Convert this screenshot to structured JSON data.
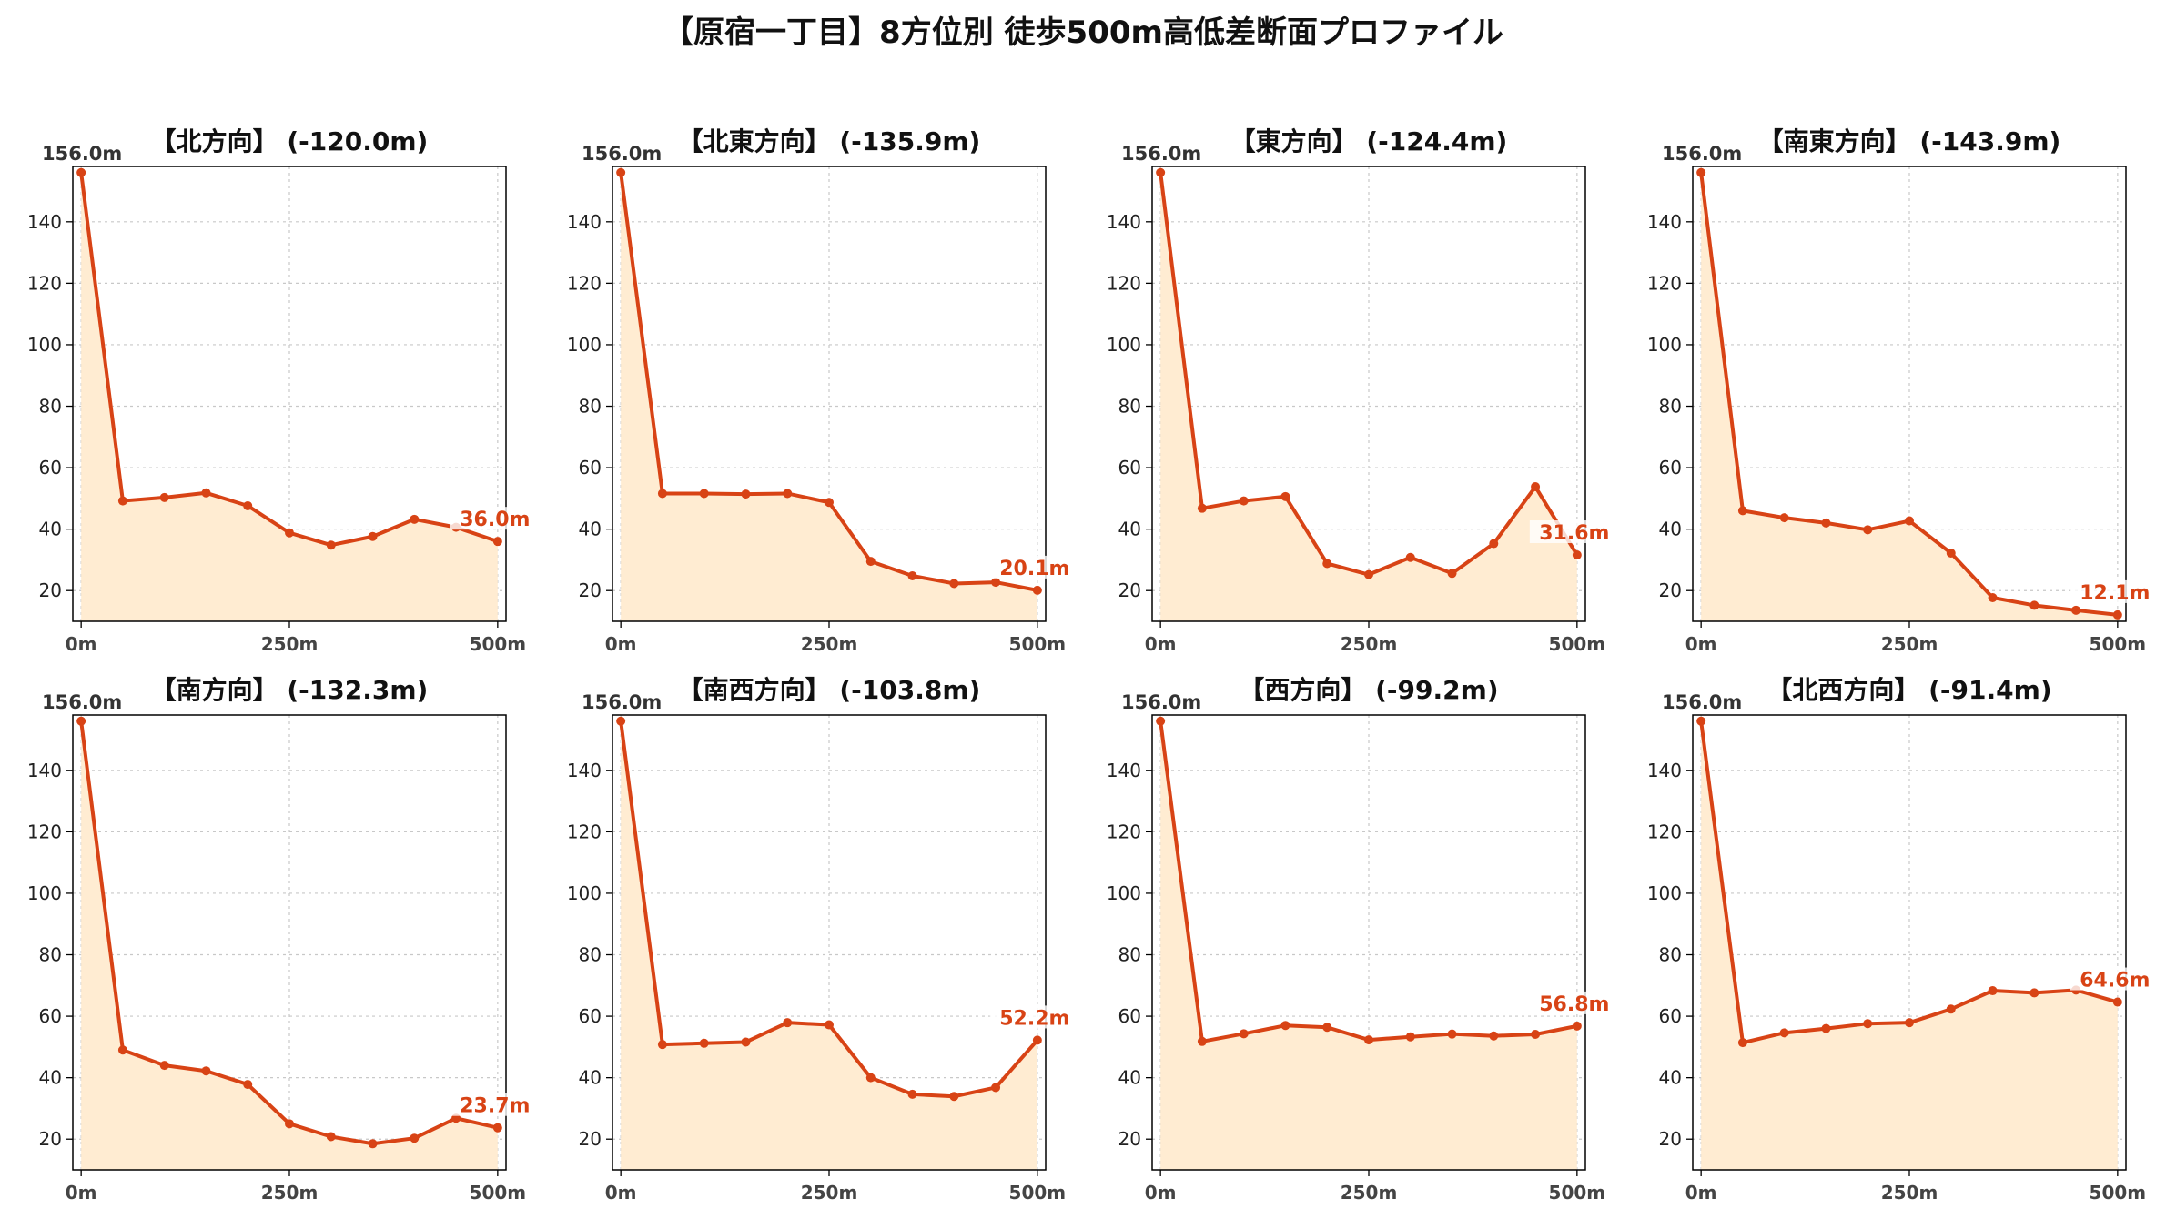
{
  "title": "【原宿一丁目】8方位別 徒歩500m高低差断面プロファイル",
  "colors": {
    "line": "#d84315",
    "fill": "#ffecd2",
    "grid": "#c8c8c8",
    "text": "#222222",
    "tick": "#444444"
  },
  "chart_data": [
    {
      "type": "area",
      "title": "【北方向】 (-120.0m)",
      "start_label": "156.0m",
      "end_label": "36.0m",
      "x": [
        0,
        50,
        100,
        150,
        200,
        250,
        300,
        350,
        400,
        450,
        500
      ],
      "values": [
        156.0,
        49.2,
        50.3,
        51.8,
        47.6,
        38.8,
        34.8,
        37.6,
        43.2,
        40.6,
        36.0
      ],
      "xticks": [
        0,
        250,
        500
      ],
      "xtick_labels": [
        "0m",
        "250m",
        "500m"
      ],
      "xlim": [
        -10,
        510
      ],
      "yticks": [
        20,
        40,
        60,
        80,
        100,
        120,
        140
      ],
      "ylim": [
        10,
        158
      ],
      "grid": true
    },
    {
      "type": "area",
      "title": "【北東方向】 (-135.9m)",
      "start_label": "156.0m",
      "end_label": "20.1m",
      "x": [
        0,
        50,
        100,
        150,
        200,
        250,
        300,
        350,
        400,
        450,
        500
      ],
      "values": [
        156.0,
        51.6,
        51.6,
        51.4,
        51.6,
        48.7,
        29.5,
        24.8,
        22.3,
        22.7,
        20.1
      ],
      "xticks": [
        0,
        250,
        500
      ],
      "xtick_labels": [
        "0m",
        "250m",
        "500m"
      ],
      "xlim": [
        -10,
        510
      ],
      "yticks": [
        20,
        40,
        60,
        80,
        100,
        120,
        140
      ],
      "ylim": [
        10,
        158
      ],
      "grid": true
    },
    {
      "type": "area",
      "title": "【東方向】 (-124.4m)",
      "start_label": "156.0m",
      "end_label": "31.6m",
      "x": [
        0,
        50,
        100,
        150,
        200,
        250,
        300,
        350,
        400,
        450,
        500
      ],
      "values": [
        156.0,
        46.8,
        49.2,
        50.6,
        28.8,
        25.2,
        30.8,
        25.6,
        35.3,
        53.8,
        31.6
      ],
      "xticks": [
        0,
        250,
        500
      ],
      "xtick_labels": [
        "0m",
        "250m",
        "500m"
      ],
      "xlim": [
        -10,
        510
      ],
      "yticks": [
        20,
        40,
        60,
        80,
        100,
        120,
        140
      ],
      "ylim": [
        10,
        158
      ],
      "grid": true
    },
    {
      "type": "area",
      "title": "【南東方向】 (-143.9m)",
      "start_label": "156.0m",
      "end_label": "12.1m",
      "x": [
        0,
        50,
        100,
        150,
        200,
        250,
        300,
        350,
        400,
        450,
        500
      ],
      "values": [
        156.0,
        46.0,
        43.7,
        42.0,
        39.8,
        42.7,
        32.2,
        17.7,
        15.2,
        13.6,
        12.1
      ],
      "xticks": [
        0,
        250,
        500
      ],
      "xtick_labels": [
        "0m",
        "250m",
        "500m"
      ],
      "xlim": [
        -10,
        510
      ],
      "yticks": [
        20,
        40,
        60,
        80,
        100,
        120,
        140
      ],
      "ylim": [
        10,
        158
      ],
      "grid": true
    },
    {
      "type": "area",
      "title": "【南方向】 (-132.3m)",
      "start_label": "156.0m",
      "end_label": "23.7m",
      "x": [
        0,
        50,
        100,
        150,
        200,
        250,
        300,
        350,
        400,
        450,
        500
      ],
      "values": [
        156.0,
        49.0,
        44.0,
        42.2,
        37.8,
        25.0,
        20.8,
        18.5,
        20.3,
        26.8,
        23.7
      ],
      "xticks": [
        0,
        250,
        500
      ],
      "xtick_labels": [
        "0m",
        "250m",
        "500m"
      ],
      "xlim": [
        -10,
        510
      ],
      "yticks": [
        20,
        40,
        60,
        80,
        100,
        120,
        140
      ],
      "ylim": [
        10,
        158
      ],
      "grid": true
    },
    {
      "type": "area",
      "title": "【南西方向】 (-103.8m)",
      "start_label": "156.0m",
      "end_label": "52.2m",
      "x": [
        0,
        50,
        100,
        150,
        200,
        250,
        300,
        350,
        400,
        450,
        500
      ],
      "values": [
        156.0,
        50.8,
        51.2,
        51.6,
        57.9,
        57.2,
        40.0,
        34.6,
        33.9,
        36.8,
        52.2
      ],
      "xticks": [
        0,
        250,
        500
      ],
      "xtick_labels": [
        "0m",
        "250m",
        "500m"
      ],
      "xlim": [
        -10,
        510
      ],
      "yticks": [
        20,
        40,
        60,
        80,
        100,
        120,
        140
      ],
      "ylim": [
        10,
        158
      ],
      "grid": true
    },
    {
      "type": "area",
      "title": "【西方向】 (-99.2m)",
      "start_label": "156.0m",
      "end_label": "56.8m",
      "x": [
        0,
        50,
        100,
        150,
        200,
        250,
        300,
        350,
        400,
        450,
        500
      ],
      "values": [
        156.0,
        51.8,
        54.3,
        57.0,
        56.4,
        52.3,
        53.3,
        54.2,
        53.6,
        54.1,
        56.8
      ],
      "xticks": [
        0,
        250,
        500
      ],
      "xtick_labels": [
        "0m",
        "250m",
        "500m"
      ],
      "xlim": [
        -10,
        510
      ],
      "yticks": [
        20,
        40,
        60,
        80,
        100,
        120,
        140
      ],
      "ylim": [
        10,
        158
      ],
      "grid": true
    },
    {
      "type": "area",
      "title": "【北西方向】 (-91.4m)",
      "start_label": "156.0m",
      "end_label": "64.6m",
      "x": [
        0,
        50,
        100,
        150,
        200,
        250,
        300,
        350,
        400,
        450,
        500
      ],
      "values": [
        156.0,
        51.4,
        54.6,
        56.0,
        57.6,
        57.9,
        62.3,
        68.3,
        67.6,
        68.5,
        64.6
      ],
      "xticks": [
        0,
        250,
        500
      ],
      "xtick_labels": [
        "0m",
        "250m",
        "500m"
      ],
      "xlim": [
        -10,
        510
      ],
      "yticks": [
        20,
        40,
        60,
        80,
        100,
        120,
        140
      ],
      "ylim": [
        10,
        158
      ],
      "grid": true
    }
  ]
}
